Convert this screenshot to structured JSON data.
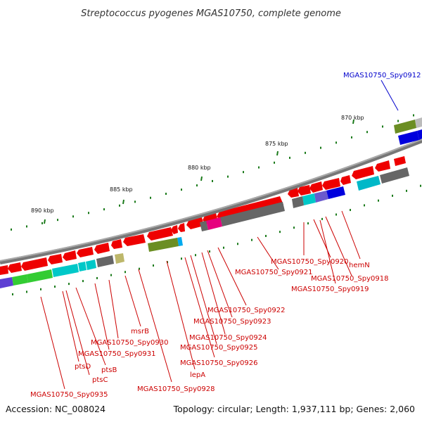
{
  "title": "Streptococcus pyogenes MGAS10750, complete genome",
  "accession": "Accession: NC_008024",
  "summary": "Topology: circular; Length: 1,937,111 bp; Genes: 2,060",
  "ticks": [
    "870 kbp",
    "875 kbp",
    "880 kbp",
    "885 kbp",
    "890 kbp"
  ],
  "labels": [
    {
      "name": "MGAS10750_Spy0912",
      "color": "#0000cc"
    },
    {
      "name": "hemN",
      "color": "#cc0000"
    },
    {
      "name": "MGAS10750_Spy0920",
      "color": "#cc0000"
    },
    {
      "name": "MGAS10750_Spy0921",
      "color": "#cc0000"
    },
    {
      "name": "MGAS10750_Spy0918",
      "color": "#cc0000"
    },
    {
      "name": "MGAS10750_Spy0919",
      "color": "#cc0000"
    },
    {
      "name": "MGAS10750_Spy0922",
      "color": "#cc0000"
    },
    {
      "name": "MGAS10750_Spy0923",
      "color": "#cc0000"
    },
    {
      "name": "msrB",
      "color": "#cc0000"
    },
    {
      "name": "MGAS10750_Spy0924",
      "color": "#cc0000"
    },
    {
      "name": "MGAS10750_Spy0930",
      "color": "#cc0000"
    },
    {
      "name": "MGAS10750_Spy0925",
      "color": "#cc0000"
    },
    {
      "name": "MGAS10750_Spy0931",
      "color": "#cc0000"
    },
    {
      "name": "MGAS10750_Spy0926",
      "color": "#cc0000"
    },
    {
      "name": "ptsD",
      "color": "#cc0000"
    },
    {
      "name": "ptsB",
      "color": "#cc0000"
    },
    {
      "name": "lepA",
      "color": "#cc0000"
    },
    {
      "name": "ptsC",
      "color": "#cc0000"
    },
    {
      "name": "MGAS10750_Spy0928",
      "color": "#cc0000"
    },
    {
      "name": "MGAS10750_Spy0935",
      "color": "#cc0000"
    }
  ],
  "colors": {
    "backbone": "#888888",
    "forward_gene": "#ee0000",
    "tick": "#1a7a1a",
    "label_line": "#cc0000"
  }
}
